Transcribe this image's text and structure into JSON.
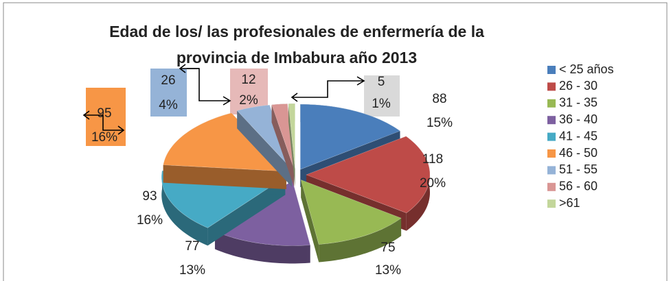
{
  "chart_data": {
    "type": "pie3d",
    "title": [
      "Edad de los/ las profesionales de enfermería de la",
      "provincia de Imbabura  año 2013"
    ],
    "categories": [
      "< 25 años",
      "26 - 30",
      "31 - 35",
      "36 - 40",
      "41 - 45",
      "46 - 50",
      "51 - 55",
      "56 - 60",
      ">61"
    ],
    "values": [
      88,
      118,
      75,
      77,
      93,
      95,
      26,
      12,
      5
    ],
    "percent_labels": [
      "15%",
      "20%",
      "13%",
      "13%",
      "16%",
      "16%",
      "4%",
      "2%",
      "1%"
    ],
    "colors": [
      "#4a7ebb",
      "#be4b48",
      "#98b954",
      "#7d60a0",
      "#46aac5",
      "#f79646",
      "#95b3d7",
      "#d99694",
      "#c3d69b"
    ],
    "legend": "right"
  }
}
